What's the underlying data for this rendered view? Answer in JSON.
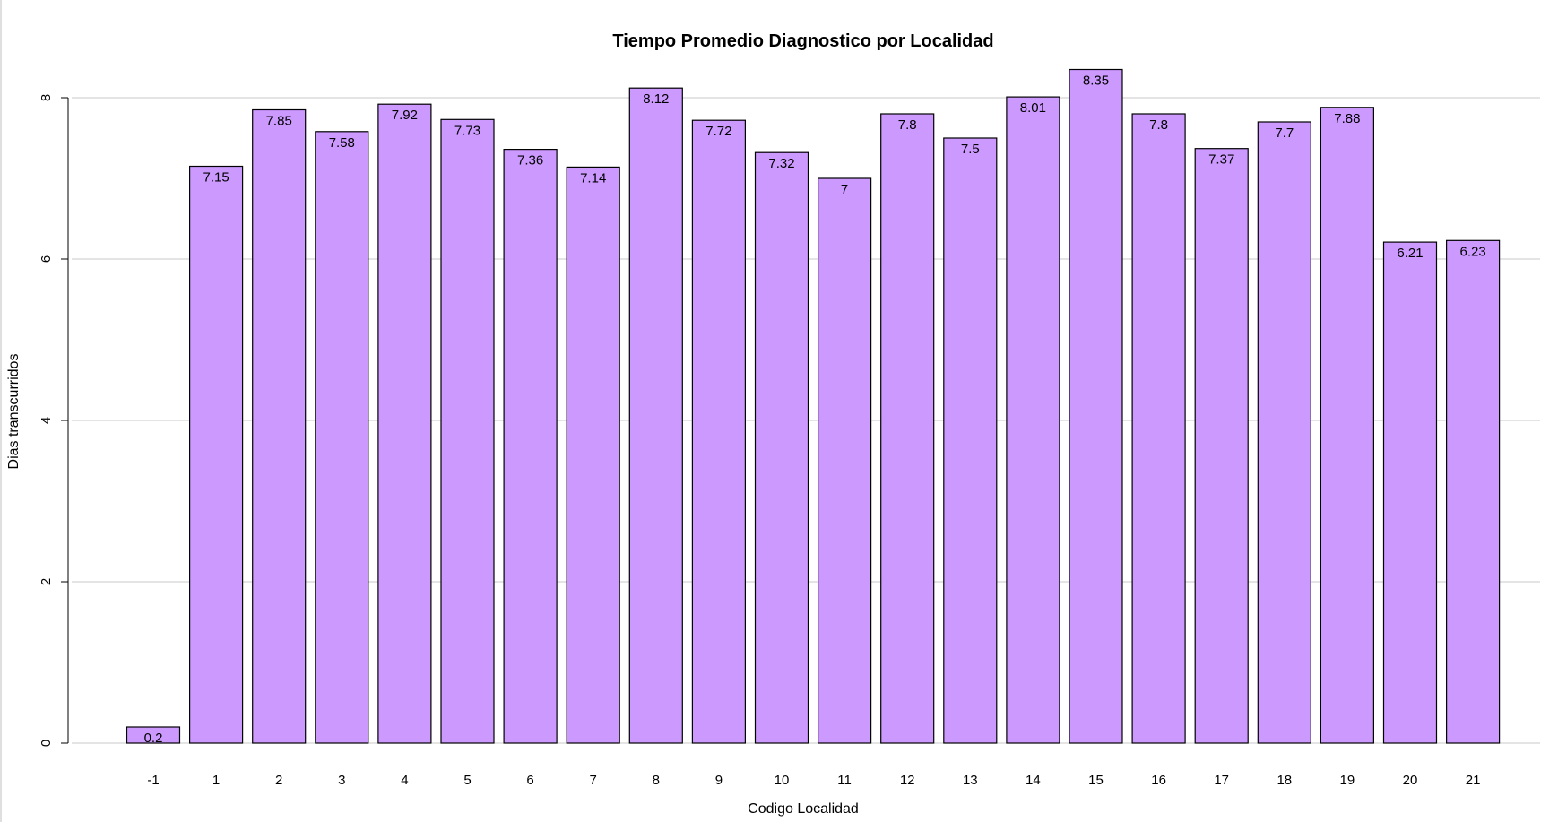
{
  "chart_data": {
    "type": "bar",
    "title": "Tiempo Promedio Diagnostico por Localidad",
    "xlabel": "Codigo Localidad",
    "ylabel": "Dias transcurridos",
    "categories": [
      "-1",
      "1",
      "2",
      "3",
      "4",
      "5",
      "6",
      "7",
      "8",
      "9",
      "10",
      "11",
      "12",
      "13",
      "14",
      "15",
      "16",
      "17",
      "18",
      "19",
      "20",
      "21"
    ],
    "values": [
      0.2,
      7.15,
      7.85,
      7.58,
      7.92,
      7.73,
      7.36,
      7.14,
      8.12,
      7.72,
      7.32,
      7,
      7.8,
      7.5,
      8.01,
      8.35,
      7.8,
      7.37,
      7.7,
      7.88,
      6.21,
      6.23
    ],
    "data_labels": [
      "0.2",
      "7.15",
      "7.85",
      "7.58",
      "7.92",
      "7.73",
      "7.36",
      "7.14",
      "8.12",
      "7.72",
      "7.32",
      "7",
      "7.8",
      "7.5",
      "8.01",
      "8.35",
      "7.8",
      "7.37",
      "7.7",
      "7.88",
      "6.21",
      "6.23"
    ],
    "yticks": [
      0,
      2,
      4,
      6,
      8
    ],
    "ylim": [
      0,
      8.5
    ],
    "grid": true,
    "legend": "none",
    "bar_color": "#cc99ff",
    "bar_border_color": "#000000",
    "grid_color": "#c8c8c8"
  }
}
